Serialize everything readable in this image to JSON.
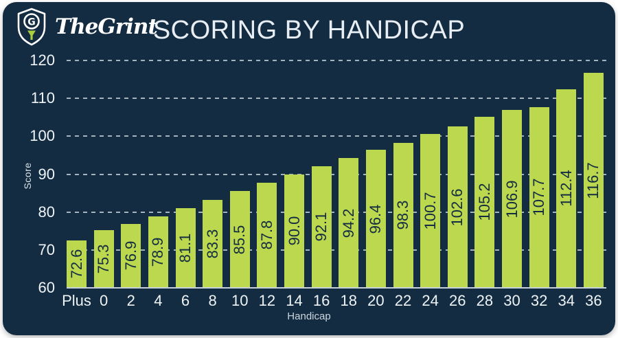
{
  "header": {
    "brand": "TheGrint",
    "title": "SCORING BY HANDICAP"
  },
  "colors": {
    "page_background": "#ffffff",
    "card_background": "#142c42",
    "bar_fill": "#bcd84e",
    "bar_value_text": "#142c42",
    "axis_text": "#eff4f7",
    "gridline": "#dee8ee",
    "baseline": "#c6d0d8",
    "tee_green": "#a9ce3f"
  },
  "chart_data": {
    "type": "bar",
    "title": "SCORING BY HANDICAP",
    "xlabel": "Handicap",
    "ylabel": "Score",
    "categories": [
      "Plus",
      "0",
      "2",
      "4",
      "6",
      "8",
      "10",
      "12",
      "14",
      "16",
      "18",
      "20",
      "22",
      "24",
      "26",
      "28",
      "30",
      "32",
      "34",
      "36"
    ],
    "values": [
      72.6,
      75.3,
      76.9,
      78.9,
      81.1,
      83.3,
      85.5,
      87.8,
      90.0,
      92.1,
      94.2,
      96.4,
      98.3,
      100.7,
      102.6,
      105.2,
      106.9,
      107.7,
      112.4,
      116.7
    ],
    "value_labels": [
      "72.6",
      "75.3",
      "76.9",
      "78.9",
      "81.1",
      "83.3",
      "85.5",
      "87.8",
      "90.0",
      "92.1",
      "94.2",
      "96.4",
      "98.3",
      "100.7",
      "102.6",
      "105.2",
      "106.9",
      "107.7",
      "112.4",
      "116.7"
    ],
    "ylim": [
      60,
      120
    ],
    "yticks": [
      60,
      70,
      80,
      90,
      100,
      110,
      120
    ],
    "grid": "horizontal-dashed",
    "legend": "none",
    "bar_label_rotation": -90
  }
}
